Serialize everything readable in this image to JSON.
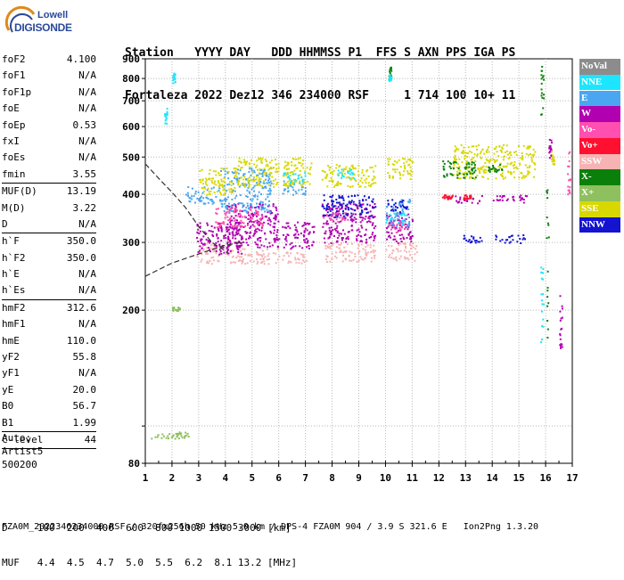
{
  "logo": {
    "line1": "Lowell",
    "line2": "DIGISONDE"
  },
  "header": {
    "line1": "Station   YYYY DAY   DDD HHMMSS P1  FFS S AXN PPS IGA PS",
    "line2": "Fortaleza 2022 Dez12 346 234000 RSF     1 714 100 10+ 11"
  },
  "params": [
    {
      "k": "foF2",
      "v": "4.100"
    },
    {
      "k": "foF1",
      "v": "N/A"
    },
    {
      "k": "foF1p",
      "v": "N/A"
    },
    {
      "k": "foE",
      "v": "N/A"
    },
    {
      "k": "foEp",
      "v": "0.53"
    },
    {
      "k": "fxI",
      "v": "N/A"
    },
    {
      "k": "foEs",
      "v": "N/A"
    },
    {
      "k": "fmin",
      "v": "3.55",
      "sep": true
    },
    {
      "k": "MUF(D)",
      "v": "13.19"
    },
    {
      "k": "M(D)",
      "v": "3.22"
    },
    {
      "k": "D",
      "v": "N/A",
      "sep": true
    },
    {
      "k": "h`F",
      "v": "350.0"
    },
    {
      "k": "h`F2",
      "v": "350.0"
    },
    {
      "k": "h`E",
      "v": "N/A"
    },
    {
      "k": "h`Es",
      "v": "N/A",
      "sep": true
    },
    {
      "k": "hmF2",
      "v": "312.6"
    },
    {
      "k": "hmF1",
      "v": "N/A"
    },
    {
      "k": "hmE",
      "v": "110.0"
    },
    {
      "k": "yF2",
      "v": "55.8"
    },
    {
      "k": "yF1",
      "v": "N/A"
    },
    {
      "k": "yE",
      "v": "20.0"
    },
    {
      "k": "B0",
      "v": "56.7"
    },
    {
      "k": "B1",
      "v": "1.99",
      "sep": true
    },
    {
      "k": "C-level",
      "v": "44",
      "sep": true
    }
  ],
  "auto": [
    "Auto:",
    "Artist5",
    "500200"
  ],
  "legend": [
    {
      "label": "NoVal",
      "color": "#8c8c8c"
    },
    {
      "label": "NNE",
      "color": "#1ce6ff"
    },
    {
      "label": "E",
      "color": "#4aa6f0"
    },
    {
      "label": "W",
      "color": "#b000b0"
    },
    {
      "label": "Vo-",
      "color": "#ff4fb0"
    },
    {
      "label": "Vo+",
      "color": "#ff1030"
    },
    {
      "label": "SSW",
      "color": "#f7b3b3"
    },
    {
      "label": "X-",
      "color": "#0a800a"
    },
    {
      "label": "X+",
      "color": "#8fc060"
    },
    {
      "label": "SSE",
      "color": "#d8d800"
    },
    {
      "label": "NNW",
      "color": "#1414d0"
    }
  ],
  "dtable": {
    "line1": "D     100  200  400  600  800 1000 1500 3000 [km]",
    "line2": "MUF   4.4  4.5  4.7  5.0  5.5  6.2  8.1 13.2 [MHz]"
  },
  "footer": "FZA0M_2022346234000.RSF / 320fx256h 50 kHz 5.0 km / DPS-4 FZA0M 904 / 3.9 S 321.6 E   Ion2Png 1.3.20",
  "chart_data": {
    "type": "scatter",
    "title": "",
    "xlabel": "",
    "ylabel": "",
    "xlim": [
      1,
      17
    ],
    "ylim": [
      80,
      900
    ],
    "xticks": [
      1,
      2,
      3,
      4,
      5,
      6,
      7,
      8,
      9,
      10,
      11,
      12,
      13,
      14,
      15,
      16,
      17
    ],
    "yticks": [
      80,
      100,
      200,
      300,
      400,
      500,
      600,
      700,
      800,
      900
    ],
    "grid": true,
    "series": [
      {
        "name": "SSW",
        "clusters": [
          [
            2.9,
            3.8,
            265,
            300
          ],
          [
            4.0,
            6.0,
            265,
            290
          ],
          [
            6.1,
            7.1,
            265,
            285
          ],
          [
            7.7,
            9.6,
            268,
            300
          ],
          [
            10.0,
            11.2,
            270,
            300
          ]
        ]
      },
      {
        "name": "W",
        "clusters": [
          [
            2.9,
            4.6,
            280,
            340
          ],
          [
            4.0,
            6.0,
            290,
            380
          ],
          [
            6.1,
            7.3,
            290,
            340
          ],
          [
            7.6,
            9.6,
            300,
            380
          ],
          [
            10.0,
            11.0,
            300,
            360
          ],
          [
            12.6,
            13.6,
            380,
            400
          ],
          [
            14.0,
            15.4,
            380,
            400
          ]
        ]
      },
      {
        "name": "E",
        "clusters": [
          [
            2.5,
            3.8,
            380,
            420
          ],
          [
            3.8,
            5.7,
            360,
            470
          ],
          [
            6.1,
            7.0,
            400,
            440
          ],
          [
            10.0,
            10.9,
            330,
            390
          ]
        ]
      },
      {
        "name": "SSE",
        "clusters": [
          [
            3.0,
            4.4,
            400,
            470
          ],
          [
            4.4,
            6.0,
            420,
            500
          ],
          [
            6.1,
            7.2,
            420,
            500
          ],
          [
            7.6,
            9.6,
            420,
            480
          ],
          [
            10.0,
            11.0,
            440,
            500
          ],
          [
            12.5,
            15.6,
            440,
            540
          ]
        ]
      },
      {
        "name": "NNE",
        "clusters": [
          [
            6.1,
            7.0,
            430,
            460
          ],
          [
            8.2,
            8.8,
            440,
            470
          ],
          [
            10.0,
            10.7,
            330,
            360
          ]
        ]
      },
      {
        "name": "NNW",
        "clusters": [
          [
            7.6,
            9.6,
            350,
            400
          ],
          [
            10.0,
            10.8,
            360,
            390
          ],
          [
            12.9,
            13.6,
            300,
            315
          ],
          [
            14.0,
            15.2,
            300,
            315
          ]
        ]
      },
      {
        "name": "X-",
        "clusters": [
          [
            12.1,
            13.4,
            440,
            490
          ],
          [
            13.8,
            14.4,
            460,
            480
          ]
        ]
      },
      {
        "name": "Vo-",
        "clusters": [
          [
            3.6,
            5.4,
            330,
            370
          ],
          [
            7.6,
            8.6,
            340,
            360
          ],
          [
            10.1,
            10.8,
            320,
            340
          ]
        ]
      },
      {
        "name": "Vo+",
        "clusters": [
          [
            12.1,
            12.5,
            390,
            400
          ],
          [
            12.9,
            13.2,
            390,
            400
          ]
        ]
      },
      {
        "name": "X+",
        "clusters": [
          [
            2.0,
            2.6,
            93,
            97
          ],
          [
            2.0,
            2.3,
            200,
            205
          ],
          [
            1.2,
            2.4,
            93,
            96
          ]
        ]
      }
    ],
    "traced_curve": {
      "points": [
        [
          1,
          480
        ],
        [
          1.5,
          440
        ],
        [
          2,
          405
        ],
        [
          2.5,
          370
        ],
        [
          3,
          330
        ],
        [
          3.5,
          300
        ],
        [
          4,
          285
        ],
        [
          4.1,
          280
        ]
      ],
      "lower": [
        [
          1,
          245
        ],
        [
          2,
          265
        ],
        [
          3,
          280
        ],
        [
          4,
          295
        ],
        [
          4.6,
          300
        ]
      ]
    }
  }
}
